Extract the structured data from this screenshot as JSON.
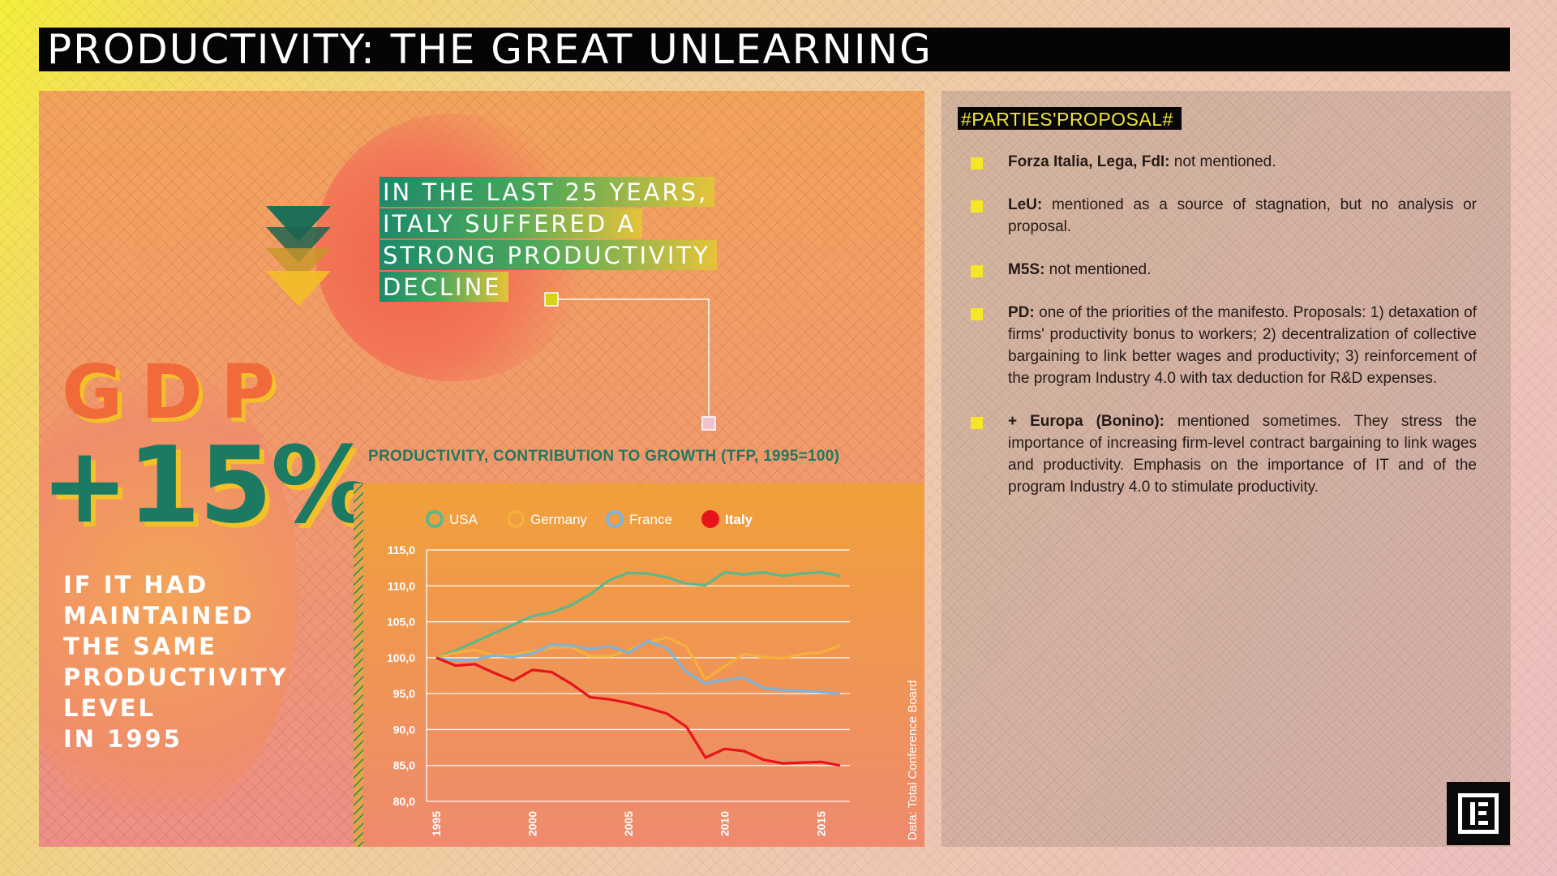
{
  "title": "PRODUCTIVITY: THE GREAT UNLEARNING",
  "left": {
    "headline_lines": [
      "IN THE LAST 25 YEARS,",
      "ITALY SUFFERED A",
      "STRONG PRODUCTIVITY",
      "DECLINE"
    ],
    "gdp_label": "GDP",
    "gdp_value": "+15%",
    "gdp_note_lines": [
      "IF IT HAD",
      "MAINTAINED",
      "THE SAME",
      "PRODUCTIVITY",
      "LEVEL",
      "IN 1995"
    ]
  },
  "colors": {
    "usa": "#5cb88a",
    "germany": "#f4b03c",
    "france": "#7fb3d8",
    "italy": "#e8141c",
    "accent_green": "#1c7a63",
    "accent_yellow": "#f5e628"
  },
  "chart_data": {
    "type": "line",
    "title": "PRODUCTIVITY, CONTRIBUTION TO GROWTH (TFP, 1995=100)",
    "source": "Data: Total Conference Board",
    "x": [
      1995,
      1996,
      1997,
      1998,
      1999,
      2000,
      2001,
      2002,
      2003,
      2004,
      2005,
      2006,
      2007,
      2008,
      2009,
      2010,
      2011,
      2012,
      2013,
      2014,
      2015,
      2016
    ],
    "xticks": [
      "1995",
      "2000",
      "2005",
      "2010",
      "2015"
    ],
    "ylim": [
      80,
      115
    ],
    "yticks": [
      "115,0",
      "110,0",
      "105,0",
      "100,0",
      "95,0",
      "90,0",
      "85,0",
      "80,0"
    ],
    "legend_position": "top",
    "series": [
      {
        "name": "USA",
        "color_key": "usa",
        "values": [
          100.0,
          101.0,
          102.2,
          103.4,
          104.6,
          105.8,
          106.3,
          107.3,
          108.8,
          110.8,
          111.8,
          111.7,
          111.2,
          110.3,
          110.1,
          111.9,
          111.6,
          111.9,
          111.4,
          111.7,
          111.9,
          111.4
        ]
      },
      {
        "name": "Germany",
        "color_key": "germany",
        "values": [
          100.0,
          100.7,
          101.1,
          100.3,
          100.4,
          100.9,
          101.4,
          101.5,
          100.2,
          100.2,
          101.0,
          102.2,
          102.8,
          101.6,
          97.0,
          98.8,
          100.5,
          100.1,
          99.9,
          100.5,
          100.7,
          101.7
        ]
      },
      {
        "name": "France",
        "color_key": "france",
        "values": [
          100.0,
          99.6,
          99.7,
          100.3,
          100.1,
          100.6,
          101.8,
          101.7,
          101.2,
          101.6,
          100.7,
          102.3,
          101.3,
          98.0,
          96.4,
          96.9,
          97.2,
          95.8,
          95.5,
          95.4,
          95.2,
          95.0
        ]
      },
      {
        "name": "Italy",
        "color_key": "italy",
        "values": [
          100.0,
          98.9,
          99.1,
          97.9,
          96.8,
          98.3,
          98.0,
          96.4,
          94.5,
          94.2,
          93.7,
          93.0,
          92.2,
          90.4,
          86.1,
          87.3,
          87.0,
          85.8,
          85.3,
          85.4,
          85.5,
          85.0
        ]
      }
    ]
  },
  "right": {
    "tag": "#PARTIES'PROPOSAL#",
    "proposals": [
      {
        "party": "Forza Italia, Lega, FdI:",
        "text": " not mentioned."
      },
      {
        "party": "LeU:",
        "text": " mentioned as a source of stagnation, but no analysis or proposal."
      },
      {
        "party": "M5S:",
        "text": " not mentioned."
      },
      {
        "party": "PD:",
        "text": " one of the priorities of the manifesto. Proposals: 1) detaxation of firms' productivity bonus to workers; 2) decentralization of collective bargaining to link better wages and productivity; 3) reinforcement of the program Industry 4.0 with tax deduction for R&D expenses."
      },
      {
        "party": "+ Europa (Bonino):",
        "text": " mentioned sometimes. They stress the importance of increasing firm-level contract bargaining to link wages and productivity. Emphasis on the importance of IT and of the program Industry 4.0 to stimulate productivity."
      }
    ]
  }
}
